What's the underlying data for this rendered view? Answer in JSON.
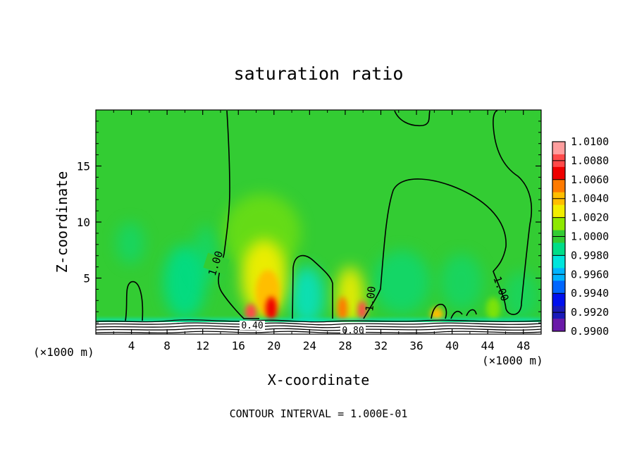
{
  "chart_data": {
    "type": "heatmap",
    "title": "saturation ratio",
    "xlabel": "X-coordinate",
    "ylabel": "Z-coordinate",
    "x_unit_left": "(×1000 m)",
    "x_unit_right": "(×1000 m)",
    "footer": "CONTOUR INTERVAL = 1.000E-01",
    "xlim": [
      0,
      50
    ],
    "ylim": [
      0,
      20
    ],
    "x_ticks": [
      4,
      8,
      12,
      16,
      20,
      24,
      28,
      32,
      36,
      40,
      44,
      48
    ],
    "y_ticks": [
      5,
      10,
      15
    ],
    "colorbar": {
      "labels": [
        "1.0100",
        "1.0080",
        "1.0060",
        "1.0040",
        "1.0020",
        "1.0000",
        "0.9980",
        "0.9960",
        "0.9940",
        "0.9920",
        "0.9900"
      ],
      "colors": [
        "#ff9e9e",
        "#ff4a4a",
        "#ee0000",
        "#ff7a00",
        "#ffbe00",
        "#f2ee00",
        "#8ee800",
        "#33cc33",
        "#00dd88",
        "#00e5dc",
        "#00b4ff",
        "#0066ff",
        "#0010ee",
        "#1a1ab8",
        "#6a1aa8"
      ],
      "background_color": "#33cc33"
    },
    "contour_labels": [
      {
        "text": "1.00",
        "x": 15.0,
        "z": 6.3
      },
      {
        "text": "1.00",
        "x": 30.2,
        "z": 2.5
      },
      {
        "text": "1.00",
        "x": 45.5,
        "z": 3.6
      },
      {
        "text": "0.40",
        "x": 17.2,
        "z": 0.7
      },
      {
        "text": "0.80",
        "x": 28.0,
        "z": 0.3
      }
    ],
    "grid": false,
    "legend": "colorbar-right"
  }
}
